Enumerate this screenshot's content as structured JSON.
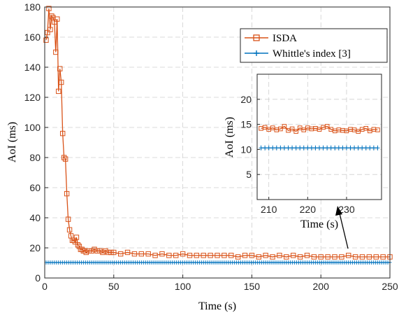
{
  "chart_data": {
    "type": "line",
    "xlabel": "Time (s)",
    "ylabel": "AoI (ms)",
    "xlim": [
      0,
      250
    ],
    "ylim": [
      0,
      180
    ],
    "xticks": [
      0,
      50,
      100,
      150,
      200,
      250
    ],
    "yticks": [
      0,
      20,
      40,
      60,
      80,
      100,
      120,
      140,
      160,
      180
    ],
    "grid": true,
    "legend_position": "top-right",
    "series": [
      {
        "name": "ISDA",
        "color": "#D95319",
        "marker": "square",
        "x": [
          1,
          2,
          3,
          4,
          5,
          6,
          7,
          8,
          9,
          10,
          11,
          12,
          13,
          14,
          15,
          16,
          17,
          18,
          19,
          20,
          21,
          22,
          23,
          24,
          25,
          26,
          27,
          28,
          29,
          30,
          32,
          34,
          36,
          38,
          40,
          42,
          44,
          46,
          48,
          50,
          55,
          60,
          65,
          70,
          75,
          80,
          85,
          90,
          95,
          100,
          105,
          110,
          115,
          120,
          125,
          130,
          135,
          140,
          145,
          150,
          155,
          160,
          165,
          170,
          175,
          180,
          185,
          190,
          195,
          200,
          205,
          210,
          215,
          220,
          225,
          230,
          235,
          240,
          245,
          250
        ],
        "y": [
          158,
          163,
          179,
          165,
          174,
          173,
          170,
          150,
          172,
          124,
          139,
          130,
          96,
          80,
          79,
          56,
          39,
          32,
          28,
          25,
          25,
          24,
          27,
          22,
          21,
          19,
          19,
          18,
          18,
          17,
          18,
          18,
          19,
          18,
          18,
          17,
          18,
          17,
          17,
          17,
          16,
          17,
          16,
          16,
          16,
          15,
          16,
          15,
          15,
          16,
          15,
          15,
          15,
          15,
          15,
          15,
          15,
          14,
          15,
          15,
          14,
          15,
          14,
          15,
          14,
          15,
          14,
          15,
          14,
          14,
          14,
          14,
          14,
          15,
          14,
          14,
          14,
          14,
          14,
          14
        ]
      },
      {
        "name": "Whittle's index [3]",
        "color": "#0072BD",
        "marker": "plus",
        "constant_y": 10.3,
        "x_range": [
          1,
          250
        ]
      }
    ],
    "inset": {
      "xlabel": "Time (s)",
      "ylabel": "AoI (ms)",
      "xlim": [
        207,
        239
      ],
      "ylim": [
        0,
        25
      ],
      "xticks": [
        210,
        220,
        230
      ],
      "yticks": [
        5,
        10,
        15,
        20
      ],
      "grid": true,
      "isda_x": [
        208,
        209,
        210,
        211,
        212,
        213,
        214,
        215,
        216,
        217,
        218,
        219,
        220,
        221,
        222,
        223,
        224,
        225,
        226,
        227,
        228,
        229,
        230,
        231,
        232,
        233,
        234,
        235,
        236,
        237,
        238
      ],
      "isda_y": [
        14.2,
        14.4,
        14.0,
        14.3,
        13.9,
        14.1,
        14.6,
        13.8,
        14.1,
        13.6,
        14.3,
        13.9,
        14.3,
        14.1,
        14.2,
        14.0,
        14.4,
        14.6,
        14.0,
        13.7,
        13.9,
        13.8,
        13.7,
        14.0,
        13.9,
        13.6,
        14.0,
        14.2,
        13.7,
        14.0,
        13.9
      ],
      "whittle_y": 10.3
    }
  }
}
